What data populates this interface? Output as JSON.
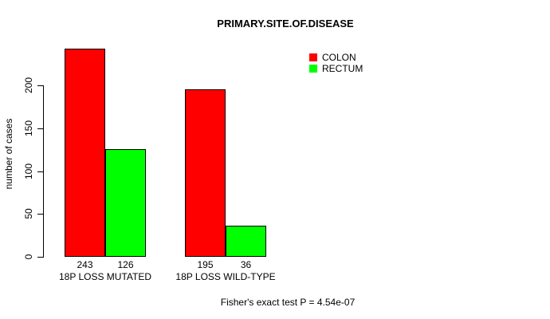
{
  "title": "PRIMARY.SITE.OF.DISEASE",
  "y_axis": {
    "label": "number of cases",
    "ticks": [
      0,
      50,
      100,
      150,
      200
    ]
  },
  "legend": {
    "items": [
      {
        "label": "COLON",
        "color": "#ff0000"
      },
      {
        "label": "RECTUM",
        "color": "#00ff00"
      }
    ]
  },
  "footer": "Fisher's exact test P = 4.54e-07",
  "chart_data": {
    "type": "bar",
    "title": "PRIMARY.SITE.OF.DISEASE",
    "categories": [
      "18P LOSS MUTATED",
      "18P LOSS WILD-TYPE"
    ],
    "series": [
      {
        "name": "COLON",
        "color": "#ff0000",
        "values": [
          243,
          195
        ]
      },
      {
        "name": "RECTUM",
        "color": "#00ff00",
        "values": [
          126,
          36
        ]
      }
    ],
    "value_labels": [
      [
        243,
        126
      ],
      [
        195,
        36
      ]
    ],
    "xlabel": "",
    "ylabel": "number of cases",
    "ylim": [
      0,
      243
    ],
    "yticks": [
      0,
      50,
      100,
      150,
      200
    ],
    "grid": false,
    "legend_position": "top-right",
    "annotation": "Fisher's exact test P = 4.54e-07"
  }
}
